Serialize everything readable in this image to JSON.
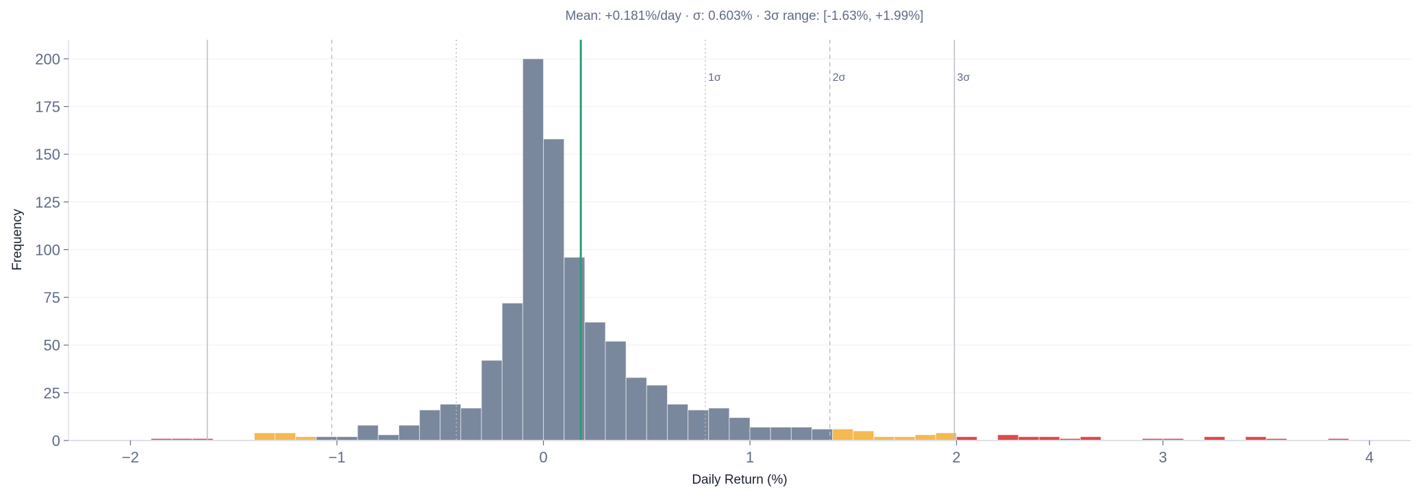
{
  "chart_data": {
    "type": "bar",
    "subtitle": "Mean: +0.181%/day  ·  σ: 0.603%  ·  3σ range: [-1.63%, +1.99%]",
    "xlabel": "Daily Return (%)",
    "ylabel": "Frequency",
    "xlim": [
      -2.3,
      4.2
    ],
    "ylim": [
      0,
      210
    ],
    "xticks": [
      "−2",
      "−1",
      "0",
      "1",
      "2",
      "3",
      "4"
    ],
    "xtick_values": [
      -2,
      -1,
      0,
      1,
      2,
      3,
      4
    ],
    "yticks": [
      "0",
      "25",
      "50",
      "75",
      "100",
      "125",
      "150",
      "175",
      "200"
    ],
    "ytick_values": [
      0,
      25,
      50,
      75,
      100,
      125,
      150,
      175,
      200
    ],
    "grid": "horizontal",
    "bin_width": 0.1,
    "bin_starts": [
      -1.9,
      -1.8,
      -1.7,
      -1.4,
      -1.3,
      -1.2,
      -1.1,
      -1.0,
      -0.9,
      -0.8,
      -0.7,
      -0.6,
      -0.5,
      -0.4,
      -0.3,
      -0.2,
      -0.1,
      0.0,
      0.1,
      0.2,
      0.3,
      0.4,
      0.5,
      0.6,
      0.7,
      0.8,
      0.9,
      1.0,
      1.1,
      1.2,
      1.3,
      1.4,
      1.5,
      1.6,
      1.7,
      1.8,
      1.9,
      2.0,
      2.2,
      2.3,
      2.4,
      2.5,
      2.6,
      2.9,
      3.0,
      3.2,
      3.4,
      3.5,
      3.8
    ],
    "counts": [
      1,
      1,
      1,
      4,
      4,
      2,
      2,
      2,
      8,
      3,
      8,
      16,
      19,
      17,
      42,
      72,
      200,
      158,
      96,
      62,
      52,
      33,
      29,
      19,
      16,
      17,
      12,
      7,
      7,
      7,
      6,
      6,
      5,
      2,
      2,
      3,
      4,
      2,
      3,
      2,
      2,
      1,
      2,
      1,
      1,
      2,
      2,
      1,
      1
    ],
    "mean": 0.181,
    "sigma": 0.603,
    "sigma_lines": [
      {
        "label": "1σ",
        "values": [
          -0.422,
          0.784
        ],
        "style": "dotted"
      },
      {
        "label": "2σ",
        "values": [
          -1.025,
          1.387
        ],
        "style": "dashed"
      },
      {
        "label": "3σ",
        "values": [
          -1.628,
          1.99
        ],
        "style": "solid"
      }
    ],
    "colors": {
      "within_2sigma": "#7a889d",
      "between_2_3sigma": "#f5b94f",
      "beyond_3sigma": "#e04848",
      "mean_line": "#2a9d78",
      "sigma_line": "#b7bcc6"
    }
  }
}
